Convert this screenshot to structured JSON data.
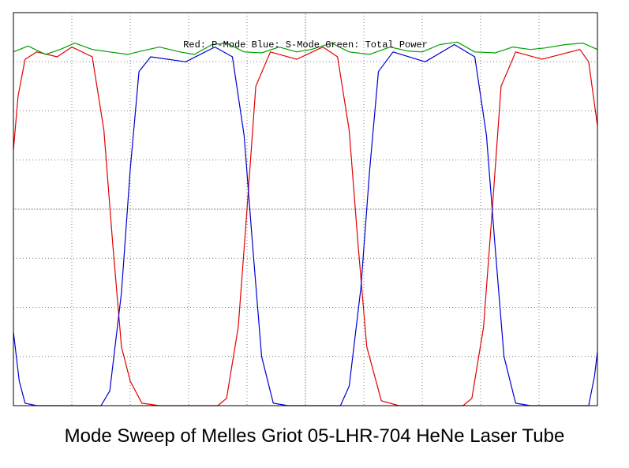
{
  "caption": "Mode Sweep of Melles Griot 05-LHR-704 HeNe Laser Tube",
  "legend_text": "Red: P-Mode  Blue: S-Mode  Green: Total Power",
  "colors": {
    "p_mode": "#e00000",
    "s_mode": "#0000d0",
    "total": "#00a000",
    "grid": "#7f7f7f",
    "frame": "#000000"
  },
  "chart_data": {
    "type": "line",
    "title": "",
    "xlabel": "",
    "ylabel": "",
    "grid": true,
    "grid_divisions": {
      "x": 10,
      "y": 8
    },
    "xlim": [
      0,
      10
    ],
    "ylim": [
      0,
      8
    ],
    "series": [
      {
        "name": "P-Mode",
        "color": "#e00000",
        "points": [
          [
            0.0,
            5.2
          ],
          [
            0.08,
            6.3
          ],
          [
            0.2,
            7.05
          ],
          [
            0.4,
            7.2
          ],
          [
            0.75,
            7.1
          ],
          [
            1.0,
            7.3
          ],
          [
            1.35,
            7.1
          ],
          [
            1.55,
            5.6
          ],
          [
            1.7,
            3.3
          ],
          [
            1.85,
            1.2
          ],
          [
            2.0,
            0.5
          ],
          [
            2.2,
            0.05
          ],
          [
            2.5,
            0.0
          ],
          [
            3.5,
            0.0
          ],
          [
            3.65,
            0.15
          ],
          [
            3.85,
            1.6
          ],
          [
            4.0,
            4.0
          ],
          [
            4.15,
            6.5
          ],
          [
            4.4,
            7.2
          ],
          [
            4.85,
            7.05
          ],
          [
            5.3,
            7.3
          ],
          [
            5.55,
            7.1
          ],
          [
            5.75,
            5.6
          ],
          [
            5.9,
            3.3
          ],
          [
            6.05,
            1.2
          ],
          [
            6.3,
            0.1
          ],
          [
            6.6,
            0.0
          ],
          [
            7.7,
            0.0
          ],
          [
            7.85,
            0.15
          ],
          [
            8.05,
            1.6
          ],
          [
            8.2,
            4.0
          ],
          [
            8.35,
            6.5
          ],
          [
            8.6,
            7.2
          ],
          [
            9.05,
            7.05
          ],
          [
            9.7,
            7.25
          ],
          [
            9.85,
            7.0
          ],
          [
            10.0,
            5.7
          ]
        ]
      },
      {
        "name": "S-Mode",
        "color": "#0000d0",
        "points": [
          [
            0.0,
            1.5
          ],
          [
            0.1,
            0.5
          ],
          [
            0.2,
            0.05
          ],
          [
            0.4,
            0.0
          ],
          [
            1.5,
            0.0
          ],
          [
            1.65,
            0.3
          ],
          [
            1.85,
            2.3
          ],
          [
            2.0,
            4.8
          ],
          [
            2.15,
            6.8
          ],
          [
            2.35,
            7.1
          ],
          [
            2.95,
            7.0
          ],
          [
            3.45,
            7.3
          ],
          [
            3.75,
            7.1
          ],
          [
            3.95,
            5.5
          ],
          [
            4.1,
            3.2
          ],
          [
            4.25,
            1.0
          ],
          [
            4.45,
            0.05
          ],
          [
            4.7,
            0.0
          ],
          [
            5.6,
            0.0
          ],
          [
            5.75,
            0.4
          ],
          [
            5.95,
            2.4
          ],
          [
            6.1,
            4.8
          ],
          [
            6.25,
            6.8
          ],
          [
            6.5,
            7.2
          ],
          [
            7.05,
            7.0
          ],
          [
            7.55,
            7.35
          ],
          [
            7.9,
            7.1
          ],
          [
            8.1,
            5.5
          ],
          [
            8.25,
            3.2
          ],
          [
            8.4,
            1.0
          ],
          [
            8.6,
            0.05
          ],
          [
            8.85,
            0.0
          ],
          [
            9.85,
            0.0
          ],
          [
            9.95,
            0.6
          ],
          [
            10.0,
            1.1
          ]
        ]
      },
      {
        "name": "Total Power",
        "color": "#00a000",
        "points": [
          [
            0.0,
            7.2
          ],
          [
            0.25,
            7.32
          ],
          [
            0.55,
            7.15
          ],
          [
            0.8,
            7.25
          ],
          [
            1.05,
            7.38
          ],
          [
            1.35,
            7.25
          ],
          [
            1.65,
            7.2
          ],
          [
            1.95,
            7.15
          ],
          [
            2.2,
            7.22
          ],
          [
            2.5,
            7.3
          ],
          [
            2.85,
            7.2
          ],
          [
            3.1,
            7.15
          ],
          [
            3.4,
            7.35
          ],
          [
            3.65,
            7.38
          ],
          [
            3.95,
            7.2
          ],
          [
            4.25,
            7.18
          ],
          [
            4.55,
            7.3
          ],
          [
            4.85,
            7.2
          ],
          [
            5.1,
            7.25
          ],
          [
            5.45,
            7.38
          ],
          [
            5.75,
            7.2
          ],
          [
            6.1,
            7.15
          ],
          [
            6.45,
            7.3
          ],
          [
            6.75,
            7.22
          ],
          [
            7.0,
            7.2
          ],
          [
            7.3,
            7.35
          ],
          [
            7.6,
            7.4
          ],
          [
            7.9,
            7.2
          ],
          [
            8.25,
            7.18
          ],
          [
            8.55,
            7.3
          ],
          [
            8.85,
            7.25
          ],
          [
            9.1,
            7.28
          ],
          [
            9.45,
            7.35
          ],
          [
            9.75,
            7.38
          ],
          [
            10.0,
            7.25
          ]
        ]
      }
    ]
  }
}
